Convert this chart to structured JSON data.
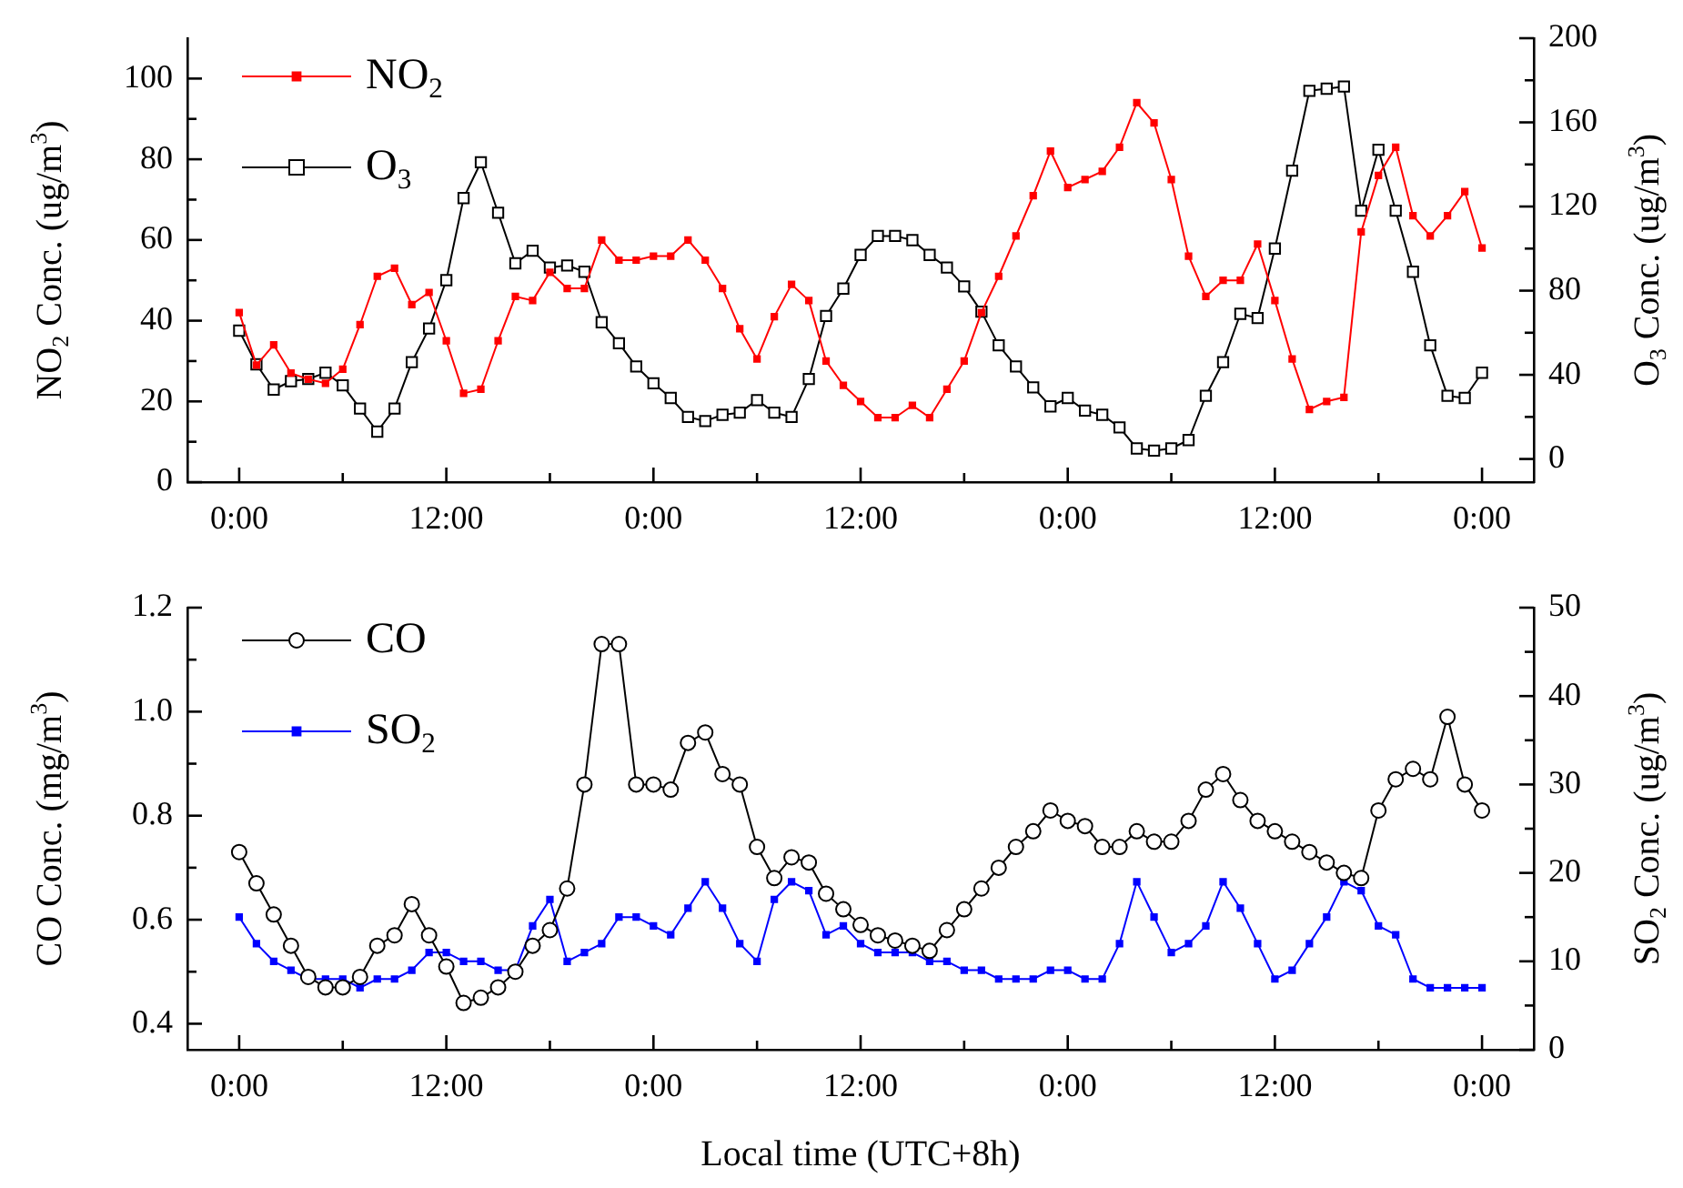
{
  "chart_data": [
    {
      "type": "line",
      "ylabel": "NO$_{2}$ Conc. (ug/m$^{3}$)",
      "y2label": "O$_{3}$ Conc. (ug/m$^{3}$)",
      "categories": [
        "0:00",
        null,
        null,
        null,
        null,
        null,
        null,
        null,
        null,
        null,
        null,
        null,
        "12:00",
        null,
        null,
        null,
        null,
        null,
        null,
        null,
        null,
        null,
        null,
        null,
        "0:00",
        null,
        null,
        null,
        null,
        null,
        null,
        null,
        null,
        null,
        null,
        null,
        "12:00",
        null,
        null,
        null,
        null,
        null,
        null,
        null,
        null,
        null,
        null,
        null,
        "0:00",
        null,
        null,
        null,
        null,
        null,
        null,
        null,
        null,
        null,
        null,
        null,
        "12:00",
        null,
        null,
        null,
        null,
        null,
        null,
        null,
        null,
        null,
        null,
        null,
        "0:00"
      ],
      "series": [
        {
          "name": "NO$_{2}$",
          "color": "#ff0000",
          "marker": "square",
          "values": [
            42,
            29,
            34,
            27,
            25.5,
            24.5,
            28,
            39,
            51,
            53,
            44,
            47,
            35,
            22,
            23,
            35,
            46,
            45,
            52,
            48,
            48,
            60,
            55,
            55,
            56,
            56,
            60,
            55,
            48,
            38,
            30.5,
            41,
            49,
            45,
            30,
            24,
            20,
            16,
            16,
            19,
            16,
            23,
            30,
            42,
            51,
            61,
            71,
            82,
            73,
            75,
            77,
            83,
            94,
            89,
            75,
            56,
            46,
            50,
            50,
            59,
            45,
            30.5,
            18,
            20,
            21,
            62,
            76,
            83,
            66,
            61,
            66,
            72,
            58
          ]
        },
        {
          "name": "O$_{3}$",
          "color": "#000000",
          "marker": "square",
          "axis": "y2",
          "values": [
            61,
            45,
            33,
            37,
            38,
            41,
            35,
            24,
            13,
            24,
            46,
            62,
            85,
            124,
            141,
            117,
            93,
            99,
            91,
            92,
            89,
            65,
            55,
            44,
            36,
            29,
            20,
            18,
            21,
            22,
            28,
            22,
            20,
            38,
            68,
            81,
            97,
            106,
            106,
            104,
            97,
            91,
            82,
            70,
            54,
            44,
            34,
            25,
            29,
            23,
            21,
            15,
            5,
            4,
            5,
            9,
            30,
            46,
            69,
            67,
            100,
            137,
            175,
            176,
            177,
            118,
            147,
            118,
            89,
            54,
            30,
            29,
            41
          ]
        }
      ],
      "ylim": [
        0,
        110
      ],
      "yticks": [
        0,
        20,
        40,
        60,
        80,
        100
      ],
      "y2lim": [
        -11,
        200
      ],
      "y2ticks": [
        0,
        40,
        80,
        120,
        160,
        200
      ],
      "grid": false,
      "legend": "top left",
      "line_style": "solid"
    },
    {
      "type": "line",
      "xlabel": "Local time (UTC+8h)",
      "ylabel": "CO Conc. (mg/m$^{3}$)",
      "y2label": "SO$_{2}$ Conc. (ug/m$^{3}$)",
      "categories": [
        "0:00",
        null,
        null,
        null,
        null,
        null,
        null,
        null,
        null,
        null,
        null,
        null,
        "12:00",
        null,
        null,
        null,
        null,
        null,
        null,
        null,
        null,
        null,
        null,
        null,
        "0:00",
        null,
        null,
        null,
        null,
        null,
        null,
        null,
        null,
        null,
        null,
        null,
        "12:00",
        null,
        null,
        null,
        null,
        null,
        null,
        null,
        null,
        null,
        null,
        null,
        "0:00",
        null,
        null,
        null,
        null,
        null,
        null,
        null,
        null,
        null,
        null,
        null,
        "12:00",
        null,
        null,
        null,
        null,
        null,
        null,
        null,
        null,
        null,
        null,
        null,
        "0:00"
      ],
      "series": [
        {
          "name": "CO",
          "color": "#000000",
          "marker": "circle",
          "values": [
            0.73,
            0.67,
            0.61,
            0.55,
            0.49,
            0.47,
            0.47,
            0.49,
            0.55,
            0.57,
            0.63,
            0.57,
            0.51,
            0.44,
            0.45,
            0.47,
            0.5,
            0.55,
            0.58,
            0.66,
            0.86,
            1.13,
            1.13,
            0.86,
            0.86,
            0.85,
            0.94,
            0.96,
            0.88,
            0.86,
            0.74,
            0.68,
            0.72,
            0.71,
            0.65,
            0.62,
            0.59,
            0.57,
            0.56,
            0.55,
            0.54,
            0.58,
            0.62,
            0.66,
            0.7,
            0.74,
            0.77,
            0.81,
            0.79,
            0.78,
            0.74,
            0.74,
            0.77,
            0.75,
            0.75,
            0.79,
            0.85,
            0.88,
            0.83,
            0.79,
            0.77,
            0.75,
            0.73,
            0.71,
            0.69,
            0.68,
            0.81,
            0.87,
            0.89,
            0.87,
            0.99,
            0.86,
            0.81
          ]
        },
        {
          "name": "SO$_{2}$",
          "color": "#0000ff",
          "marker": "square",
          "axis": "y2",
          "values": [
            15,
            12,
            10,
            9,
            8,
            8,
            8,
            7,
            8,
            8,
            9,
            11,
            11,
            10,
            10,
            9,
            9,
            14,
            17,
            10,
            11,
            12,
            15,
            15,
            14,
            13,
            16,
            19,
            16,
            12,
            10,
            17,
            19,
            18,
            13,
            14,
            12,
            11,
            11,
            11,
            10,
            10,
            9,
            9,
            8,
            8,
            8,
            9,
            9,
            8,
            8,
            12,
            19,
            15,
            11,
            12,
            14,
            19,
            16,
            12,
            8,
            9,
            12,
            15,
            19,
            18,
            14,
            13,
            8,
            7,
            7,
            7,
            7
          ]
        }
      ],
      "ylim": [
        0.35,
        1.2
      ],
      "yticks": [
        0.4,
        0.6,
        0.8,
        {
          "value": 1,
          "label": "1.0"
        },
        1.2
      ],
      "y2lim": [
        0,
        50
      ],
      "y2ticks": [
        0,
        10,
        20,
        30,
        40,
        50
      ],
      "grid": false,
      "legend": "top left",
      "line_style": "solid"
    }
  ]
}
